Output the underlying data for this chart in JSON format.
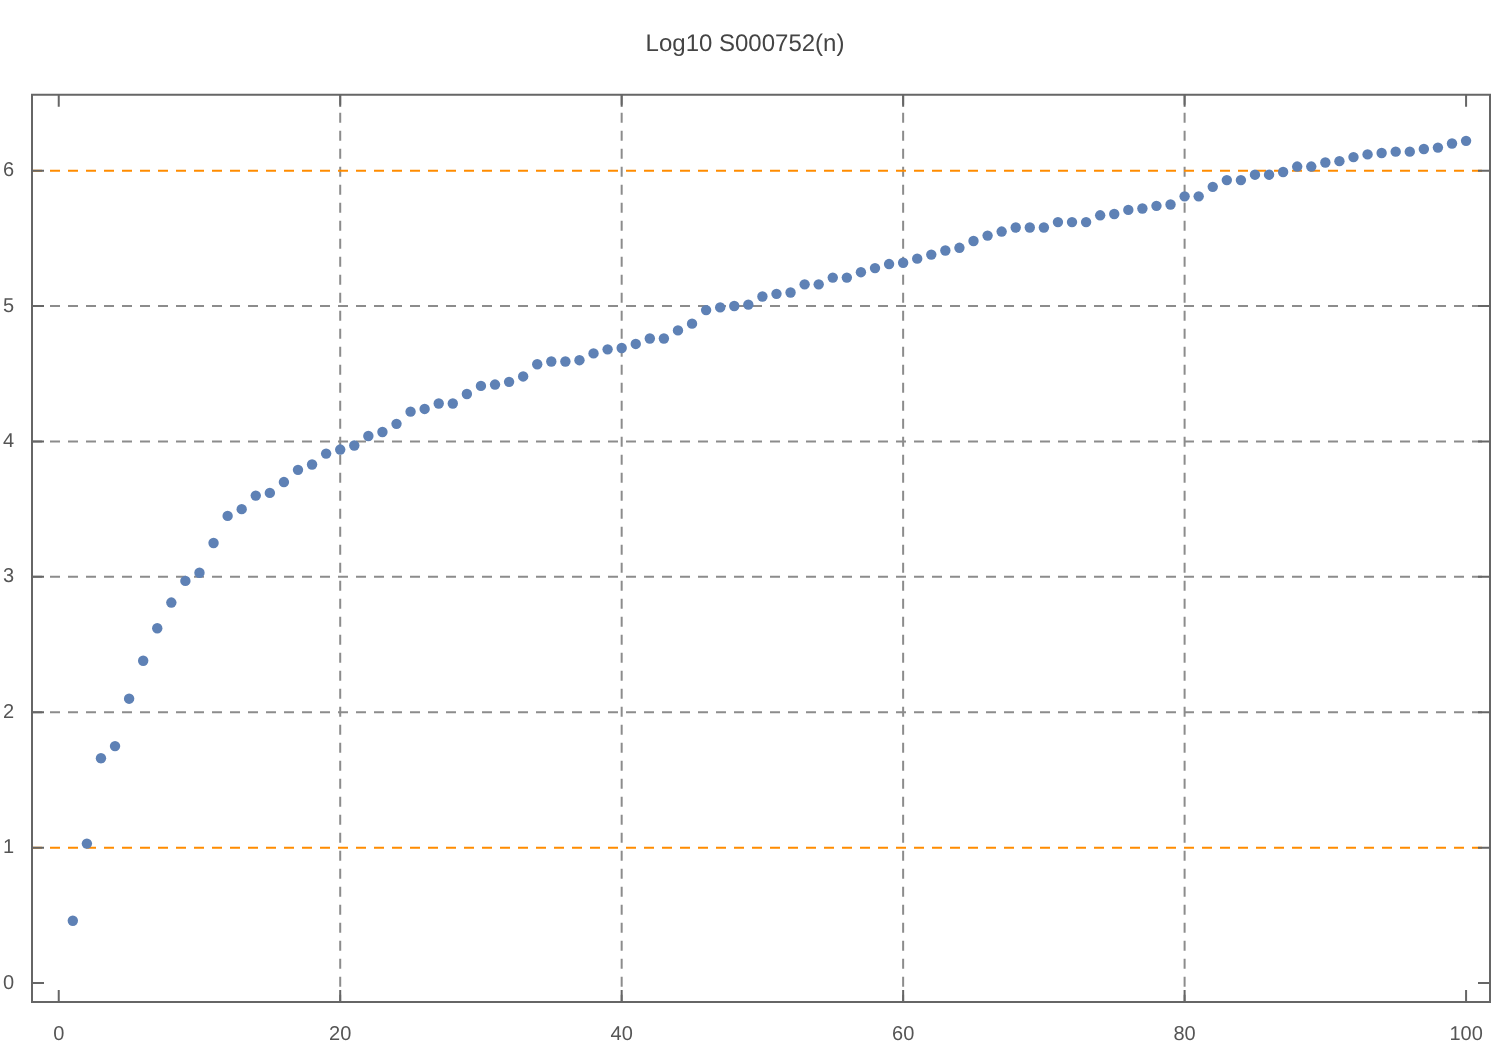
{
  "chart_data": {
    "type": "scatter",
    "title": "Log10 S000752(n)",
    "x": [
      1,
      2,
      3,
      4,
      5,
      6,
      7,
      8,
      9,
      10,
      11,
      12,
      13,
      14,
      15,
      16,
      17,
      18,
      19,
      20,
      21,
      22,
      23,
      24,
      25,
      26,
      27,
      28,
      29,
      30,
      31,
      32,
      33,
      34,
      35,
      36,
      37,
      38,
      39,
      40,
      41,
      42,
      43,
      44,
      45,
      46,
      47,
      48,
      49,
      50,
      51,
      52,
      53,
      54,
      55,
      56,
      57,
      58,
      59,
      60,
      61,
      62,
      63,
      64,
      65,
      66,
      67,
      68,
      69,
      70,
      71,
      72,
      73,
      74,
      75,
      76,
      77,
      78,
      79,
      80,
      81,
      82,
      83,
      84,
      85,
      86,
      87,
      88,
      89,
      90,
      91,
      92,
      93,
      94,
      95,
      96,
      97,
      98,
      99,
      100
    ],
    "series": [
      {
        "color": "#5e81b5",
        "values": [
          0.46,
          1.03,
          1.66,
          1.75,
          2.1,
          2.38,
          2.62,
          2.81,
          2.97,
          3.03,
          3.25,
          3.45,
          3.5,
          3.6,
          3.62,
          3.7,
          3.79,
          3.83,
          3.91,
          3.94,
          3.97,
          4.04,
          4.07,
          4.13,
          4.22,
          4.24,
          4.28,
          4.28,
          4.35,
          4.41,
          4.42,
          4.44,
          4.48,
          4.57,
          4.59,
          4.59,
          4.6,
          4.65,
          4.68,
          4.69,
          4.72,
          4.76,
          4.76,
          4.82,
          4.87,
          4.97,
          4.99,
          5.0,
          5.01,
          5.07,
          5.09,
          5.1,
          5.16,
          5.16,
          5.21,
          5.21,
          5.25,
          5.28,
          5.31,
          5.32,
          5.35,
          5.38,
          5.41,
          5.43,
          5.48,
          5.52,
          5.55,
          5.58,
          5.58,
          5.58,
          5.62,
          5.62,
          5.62,
          5.67,
          5.68,
          5.71,
          5.72,
          5.74,
          5.75,
          5.81,
          5.81,
          5.88,
          5.93,
          5.93,
          5.97,
          5.97,
          5.99,
          6.03,
          6.03,
          6.06,
          6.07,
          6.1,
          6.12,
          6.13,
          6.14,
          6.14,
          6.16,
          6.17,
          6.2,
          6.22
        ]
      }
    ],
    "xlim": [
      -1.9,
      101.7
    ],
    "ylim": [
      -0.14,
      6.56
    ],
    "xticks": [
      0,
      20,
      40,
      60,
      80,
      100
    ],
    "yticks": [
      0,
      1,
      2,
      3,
      4,
      5,
      6
    ],
    "marker": "circle",
    "ref_lines": [
      {
        "axis": "x",
        "value": 20,
        "color": "#8c8c8c",
        "line_style": "dashed"
      },
      {
        "axis": "x",
        "value": 40,
        "color": "#8c8c8c",
        "line_style": "dashed"
      },
      {
        "axis": "x",
        "value": 60,
        "color": "#8c8c8c",
        "line_style": "dashed"
      },
      {
        "axis": "x",
        "value": 80,
        "color": "#8c8c8c",
        "line_style": "dashed"
      },
      {
        "axis": "y",
        "value": 1,
        "color": "#ff8c00",
        "line_style": "dashed"
      },
      {
        "axis": "y",
        "value": 2,
        "color": "#8c8c8c",
        "line_style": "dashed"
      },
      {
        "axis": "y",
        "value": 3,
        "color": "#8c8c8c",
        "line_style": "dashed"
      },
      {
        "axis": "y",
        "value": 4,
        "color": "#8c8c8c",
        "line_style": "dashed"
      },
      {
        "axis": "y",
        "value": 5,
        "color": "#8c8c8c",
        "line_style": "dashed"
      },
      {
        "axis": "y",
        "value": 6,
        "color": "#ff8c00",
        "line_style": "dashed"
      }
    ]
  }
}
